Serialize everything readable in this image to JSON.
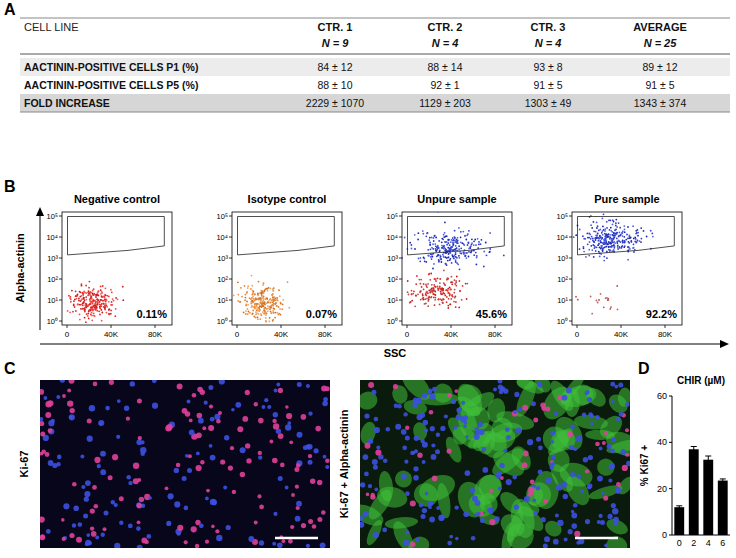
{
  "panel_a": {
    "letter": "A",
    "table": {
      "header": [
        "CELL LINE",
        "CTR. 1",
        "CTR. 2",
        "CTR. 3",
        "AVERAGE"
      ],
      "subheader": [
        "N = 9",
        "N = 4",
        "N = 4",
        "N = 25"
      ],
      "rows": [
        [
          "AACTININ-POSITIVE CELLS P1 (%)",
          "84 ± 12",
          "88 ± 14",
          "93 ± 8",
          "89 ± 12"
        ],
        [
          "AACTININ-POSITIVE CELLS P5 (%)",
          "88 ± 10",
          "92 ± 1",
          "91 ± 5",
          "91 ± 5"
        ],
        [
          "FOLD INCREASE",
          "2229 ±  1070",
          "1129 ± 203",
          "1303 ± 49",
          "1343 ± 374"
        ]
      ]
    }
  },
  "panel_b": {
    "letter": "B",
    "y_label": "Alpha-actinin",
    "x_label": "SSC",
    "yticks": [
      "10⁰",
      "10¹",
      "10²",
      "10³",
      "10⁴",
      "10⁵"
    ],
    "xticks": [
      "0",
      "40K",
      "80K"
    ],
    "plots": [
      {
        "title": "Negative control",
        "percent": "0.11%"
      },
      {
        "title": "Isotype control",
        "percent": "0.07%"
      },
      {
        "title": "Unpure sample",
        "percent": "45.6%"
      },
      {
        "title": "Pure sample",
        "percent": "92.2%"
      }
    ]
  },
  "panel_c": {
    "letter": "C",
    "images": [
      {
        "label": "Ki-67"
      },
      {
        "label": "Ki-67 + Alpha-actinin"
      }
    ]
  },
  "chart_data": {
    "type": "bar",
    "letter": "D",
    "title": "CHIR (µM)",
    "y_label": "% Ki67 +",
    "categories": [
      "0",
      "2",
      "4",
      "6"
    ],
    "values": [
      12,
      37,
      32.5,
      23.5
    ],
    "errors": [
      0.6,
      1.2,
      1.6,
      0.7
    ],
    "color": "#000000",
    "ylim": [
      0,
      60
    ],
    "yticks": [
      0,
      20,
      40,
      60
    ]
  }
}
